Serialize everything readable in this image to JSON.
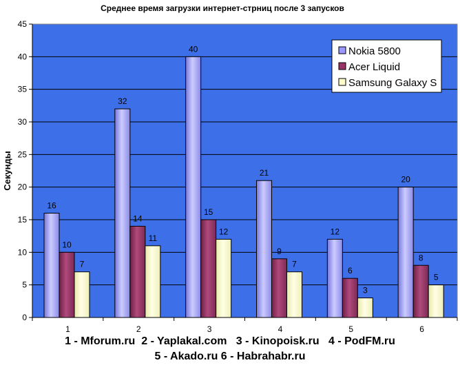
{
  "chart_data": {
    "type": "bar",
    "title": "Среднее время загрузки интернет-стрниц после 3 запусков",
    "ylabel": "Секунды",
    "xlabel": "",
    "ylim": [
      0,
      45
    ],
    "ytick_step": 5,
    "grid": true,
    "legend_position": "top-right",
    "plot_background": "#3d6fe8",
    "categories": [
      "1",
      "2",
      "3",
      "4",
      "5",
      "6"
    ],
    "series": [
      {
        "name": "Nokia 5800",
        "color": "#9999ff",
        "values": [
          16,
          32,
          40,
          21,
          12,
          20
        ]
      },
      {
        "name": "Acer Liquid",
        "color": "#993366",
        "values": [
          10,
          14,
          15,
          9,
          6,
          8
        ]
      },
      {
        "name": "Samsung Galaxy S",
        "color": "#ffffcc",
        "values": [
          7,
          11,
          12,
          7,
          3,
          5
        ]
      }
    ]
  },
  "caption": {
    "line1": "1 - Mforum.ru  2 - Yaplakal.com   3 - Kinopoisk.ru   4 - PodFM.ru",
    "line2": "5 - Akado.ru 6 - Habrahabr.ru"
  }
}
